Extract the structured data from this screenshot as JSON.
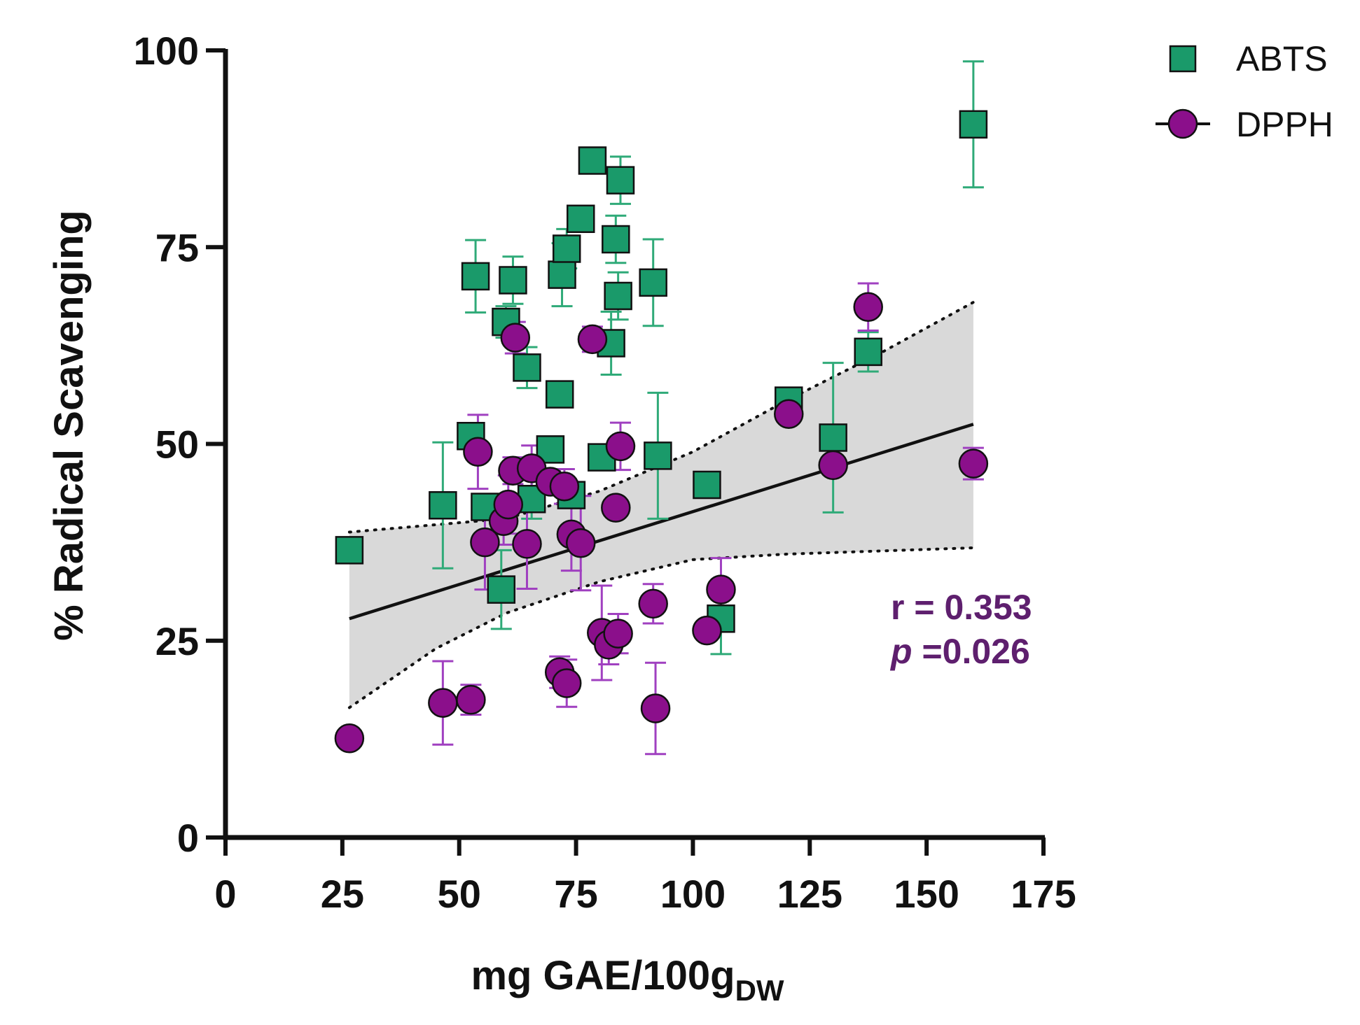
{
  "chart_data": {
    "type": "scatter",
    "xlabel": "mg GAE/100g",
    "xlabel_sub": "DW",
    "ylabel": "% Radical Scavenging",
    "xlim": [
      0,
      175
    ],
    "ylim": [
      0,
      100
    ],
    "x_ticks": [
      "0",
      "25",
      "50",
      "75",
      "100",
      "125",
      "150",
      "175"
    ],
    "y_ticks": [
      "0",
      "25",
      "50",
      "75",
      "100"
    ],
    "colors": {
      "abts": "#1a9a6a",
      "abts_err": "#2faa78",
      "dpph": "#8b0f8b",
      "dpph_err": "#a040c0",
      "band": "#d9d9d9",
      "annotation": "#5e1f6e"
    },
    "series": [
      {
        "name": "ABTS",
        "marker": "square",
        "points": [
          {
            "x": 26.5,
            "y": 36.5,
            "err": 0
          },
          {
            "x": 46.5,
            "y": 42.2,
            "err": 8
          },
          {
            "x": 52.5,
            "y": 51.0,
            "err": 1.5
          },
          {
            "x": 53.5,
            "y": 71.3,
            "err": 4.6
          },
          {
            "x": 55.5,
            "y": 42.0,
            "err": 1.2
          },
          {
            "x": 59.0,
            "y": 31.5,
            "err": 5
          },
          {
            "x": 60.0,
            "y": 65.5,
            "err": 2
          },
          {
            "x": 61.5,
            "y": 70.8,
            "err": 3
          },
          {
            "x": 64.5,
            "y": 59.7,
            "err": 2.6
          },
          {
            "x": 65.5,
            "y": 43.0,
            "err": 2.5
          },
          {
            "x": 69.5,
            "y": 49.3,
            "err": 1.5
          },
          {
            "x": 71.5,
            "y": 56.3,
            "err": 1.5
          },
          {
            "x": 72.0,
            "y": 71.5,
            "err": 4
          },
          {
            "x": 73.0,
            "y": 74.8,
            "err": 2.5
          },
          {
            "x": 74.0,
            "y": 43.5,
            "err": 1.5
          },
          {
            "x": 76.0,
            "y": 78.6,
            "err": 1.5
          },
          {
            "x": 78.5,
            "y": 86.0,
            "err": 0
          },
          {
            "x": 80.5,
            "y": 48.3,
            "err": 1.5
          },
          {
            "x": 82.5,
            "y": 62.8,
            "err": 4
          },
          {
            "x": 83.5,
            "y": 76.0,
            "err": 3
          },
          {
            "x": 84.0,
            "y": 68.8,
            "err": 3
          },
          {
            "x": 84.5,
            "y": 83.5,
            "err": 3
          },
          {
            "x": 91.5,
            "y": 70.5,
            "err": 5.5
          },
          {
            "x": 92.5,
            "y": 48.5,
            "err": 8
          },
          {
            "x": 103.0,
            "y": 44.8,
            "err": 1.5
          },
          {
            "x": 106.0,
            "y": 27.8,
            "err": 4.5
          },
          {
            "x": 120.5,
            "y": 55.5,
            "err": 1
          },
          {
            "x": 130.0,
            "y": 50.8,
            "err": 9.5
          },
          {
            "x": 137.5,
            "y": 61.7,
            "err": 2.5
          },
          {
            "x": 160.0,
            "y": 90.6,
            "err": 8
          }
        ]
      },
      {
        "name": "DPPH",
        "marker": "circle",
        "points": [
          {
            "x": 26.5,
            "y": 12.6,
            "err": 0
          },
          {
            "x": 46.5,
            "y": 17.1,
            "err": 5.3
          },
          {
            "x": 52.5,
            "y": 17.5,
            "err": 1.9
          },
          {
            "x": 54.0,
            "y": 49.0,
            "err": 4.7
          },
          {
            "x": 55.5,
            "y": 37.5,
            "err": 6
          },
          {
            "x": 59.5,
            "y": 40.2,
            "err": 3
          },
          {
            "x": 60.5,
            "y": 42.3,
            "err": 3.7
          },
          {
            "x": 61.5,
            "y": 46.6,
            "err": 1.7
          },
          {
            "x": 62.0,
            "y": 63.5,
            "err": 2
          },
          {
            "x": 64.5,
            "y": 37.3,
            "err": 5.7
          },
          {
            "x": 65.5,
            "y": 46.9,
            "err": 2.9
          },
          {
            "x": 69.5,
            "y": 45.2,
            "err": 1.5
          },
          {
            "x": 71.5,
            "y": 21.0,
            "err": 2
          },
          {
            "x": 72.5,
            "y": 44.6,
            "err": 2.2
          },
          {
            "x": 73.0,
            "y": 19.6,
            "err": 3
          },
          {
            "x": 74.0,
            "y": 38.5,
            "err": 4.6
          },
          {
            "x": 76.0,
            "y": 37.4,
            "err": 6
          },
          {
            "x": 78.5,
            "y": 63.3,
            "err": 1.6
          },
          {
            "x": 80.5,
            "y": 26.0,
            "err": 6
          },
          {
            "x": 82.0,
            "y": 24.5,
            "err": 2.5
          },
          {
            "x": 83.5,
            "y": 41.9,
            "err": 0
          },
          {
            "x": 84.0,
            "y": 25.9,
            "err": 2.5
          },
          {
            "x": 84.5,
            "y": 49.7,
            "err": 3
          },
          {
            "x": 91.5,
            "y": 29.7,
            "err": 2.5
          },
          {
            "x": 92.0,
            "y": 16.4,
            "err": 5.8
          },
          {
            "x": 103.0,
            "y": 26.3,
            "err": 0
          },
          {
            "x": 106.0,
            "y": 31.5,
            "err": 4
          },
          {
            "x": 120.5,
            "y": 53.8,
            "err": 0
          },
          {
            "x": 130.0,
            "y": 47.3,
            "err": 0
          },
          {
            "x": 137.5,
            "y": 67.4,
            "err": 3
          },
          {
            "x": 160.0,
            "y": 47.5,
            "err": 2
          }
        ]
      }
    ],
    "regression": {
      "x_start": 26.5,
      "y_start": 27.8,
      "x_end": 160.0,
      "y_end": 52.5,
      "ci_upper": [
        [
          26.5,
          38.8
        ],
        [
          60,
          40.5
        ],
        [
          80,
          44.0
        ],
        [
          100,
          49.0
        ],
        [
          120,
          55.5
        ],
        [
          140,
          61.5
        ],
        [
          160,
          68.0
        ]
      ],
      "ci_lower": [
        [
          26.5,
          16.5
        ],
        [
          45,
          24.0
        ],
        [
          60,
          28.5
        ],
        [
          80,
          32.5
        ],
        [
          100,
          35.3
        ],
        [
          120,
          36.0
        ],
        [
          140,
          36.4
        ],
        [
          160,
          36.8
        ]
      ]
    },
    "annotation": {
      "r_text": "r = 0.353",
      "p_symbol": "p",
      "p_value": " =0.026"
    },
    "legend": [
      {
        "label": "ABTS",
        "marker": "square"
      },
      {
        "label": "DPPH",
        "marker": "circle-line"
      }
    ]
  }
}
